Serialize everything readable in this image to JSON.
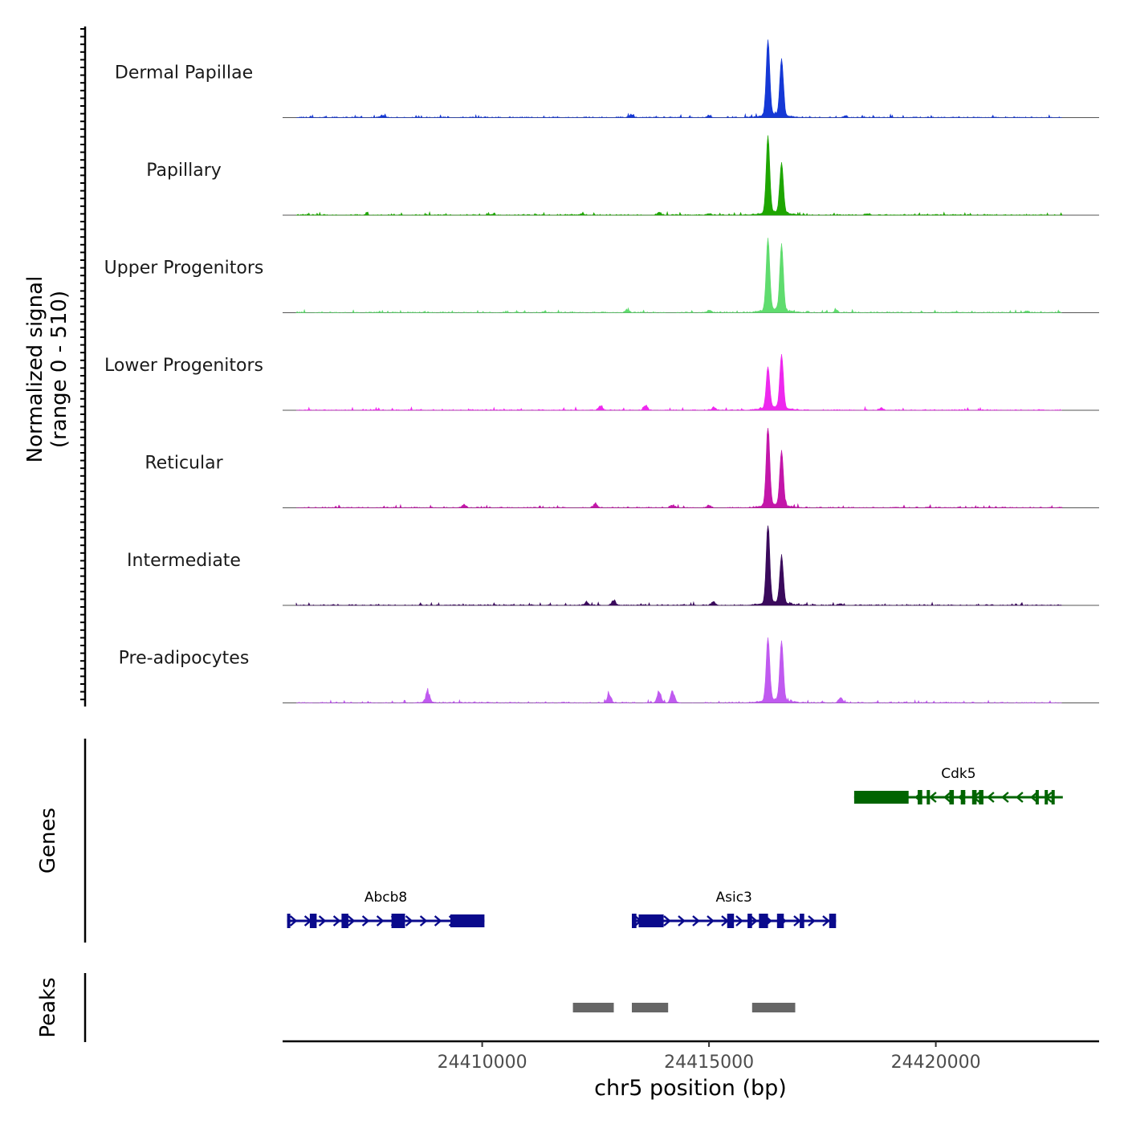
{
  "chart_data": {
    "type": "area",
    "title": "",
    "ylabel": "Normalized signal (range 0 - 510)",
    "ylabel_line1": "Normalized signal",
    "ylabel_line2": "(range 0 - 510)",
    "ylim": [
      0,
      510
    ],
    "xlabel": "chr5 position (bp)",
    "xlim": [
      24405600,
      24423600
    ],
    "xticks": [
      24410000,
      24415000,
      24420000
    ],
    "xtick_labels": [
      "24410000",
      "24415000",
      "24420000"
    ],
    "series": [
      {
        "name": "Dermal Papillae",
        "color": "#1538d6",
        "peaks": [
          [
            24416300,
            480
          ],
          [
            24416600,
            360
          ]
        ],
        "background": [
          [
            24407800,
            18
          ],
          [
            24413300,
            22
          ],
          [
            24415000,
            15
          ],
          [
            24418000,
            12
          ]
        ]
      },
      {
        "name": "Papillary",
        "color": "#1ea600",
        "peaks": [
          [
            24416300,
            490
          ],
          [
            24416600,
            320
          ]
        ],
        "background": [
          [
            24412200,
            12
          ],
          [
            24413900,
            20
          ],
          [
            24415000,
            14
          ],
          [
            24418500,
            10
          ]
        ]
      },
      {
        "name": "Upper Progenitors",
        "color": "#5fdc6e",
        "peaks": [
          [
            24416300,
            460
          ],
          [
            24416600,
            420
          ]
        ],
        "background": [
          [
            24413200,
            22
          ],
          [
            24415000,
            18
          ],
          [
            24417800,
            18
          ],
          [
            24422000,
            14
          ]
        ]
      },
      {
        "name": "Lower Progenitors",
        "color": "#ee28ee",
        "peaks": [
          [
            24416300,
            260
          ],
          [
            24416600,
            340
          ]
        ],
        "background": [
          [
            24412600,
            30
          ],
          [
            24413600,
            35
          ],
          [
            24415100,
            20
          ],
          [
            24418800,
            16
          ]
        ]
      },
      {
        "name": "Reticular",
        "color": "#c316a9",
        "peaks": [
          [
            24416300,
            510
          ],
          [
            24416600,
            350
          ]
        ],
        "background": [
          [
            24409600,
            25
          ],
          [
            24412500,
            30
          ],
          [
            24414200,
            22
          ],
          [
            24415000,
            18
          ]
        ]
      },
      {
        "name": "Intermediate",
        "color": "#3a0a5c",
        "peaks": [
          [
            24416300,
            510
          ],
          [
            24416600,
            300
          ]
        ],
        "background": [
          [
            24412300,
            28
          ],
          [
            24412900,
            40
          ],
          [
            24415100,
            30
          ],
          [
            24417900,
            14
          ]
        ]
      },
      {
        "name": "Pre-adipocytes",
        "color": "#c05af0",
        "peaks": [
          [
            24416300,
            400
          ],
          [
            24416600,
            380
          ]
        ],
        "background": [
          [
            24408800,
            100
          ],
          [
            24412800,
            70
          ],
          [
            24413900,
            90
          ],
          [
            24414200,
            95
          ],
          [
            24417900,
            40
          ]
        ]
      }
    ],
    "genes_label": "Genes",
    "genes": [
      {
        "name": "Cdk5",
        "start": 24418200,
        "end": 24422800,
        "strand": "-",
        "color": "#006400",
        "exons": [
          [
            24418200,
            24419400
          ],
          [
            24419600,
            24419700
          ],
          [
            24419800,
            24419850
          ],
          [
            24420300,
            24420400
          ],
          [
            24420550,
            24420650
          ],
          [
            24420800,
            24420900
          ],
          [
            24420950,
            24421050
          ],
          [
            24422200,
            24422250
          ],
          [
            24422400,
            24422450
          ],
          [
            24422550,
            24422600
          ]
        ]
      },
      {
        "name": "Abcb8",
        "start": 24405700,
        "end": 24410050,
        "strand": "+",
        "color": "#0a0a8c",
        "exons": [
          [
            24405700,
            24405750
          ],
          [
            24406200,
            24406350
          ],
          [
            24406900,
            24407050
          ],
          [
            24408000,
            24408300
          ],
          [
            24409300,
            24410050
          ]
        ]
      },
      {
        "name": "Asic3",
        "start": 24413300,
        "end": 24417800,
        "strand": "+",
        "color": "#0a0a8c",
        "exons": [
          [
            24413300,
            24413400
          ],
          [
            24413450,
            24414000
          ],
          [
            24415400,
            24415550
          ],
          [
            24415850,
            24415950
          ],
          [
            24416100,
            24416300
          ],
          [
            24416500,
            24416650
          ],
          [
            24417000,
            24417100
          ],
          [
            24417650,
            24417800
          ]
        ]
      }
    ],
    "peaks_label": "Peaks",
    "peaks": [
      [
        24412000,
        24412900
      ],
      [
        24413300,
        24414100
      ],
      [
        24415950,
        24416900
      ]
    ],
    "peak_color": "#666666"
  }
}
